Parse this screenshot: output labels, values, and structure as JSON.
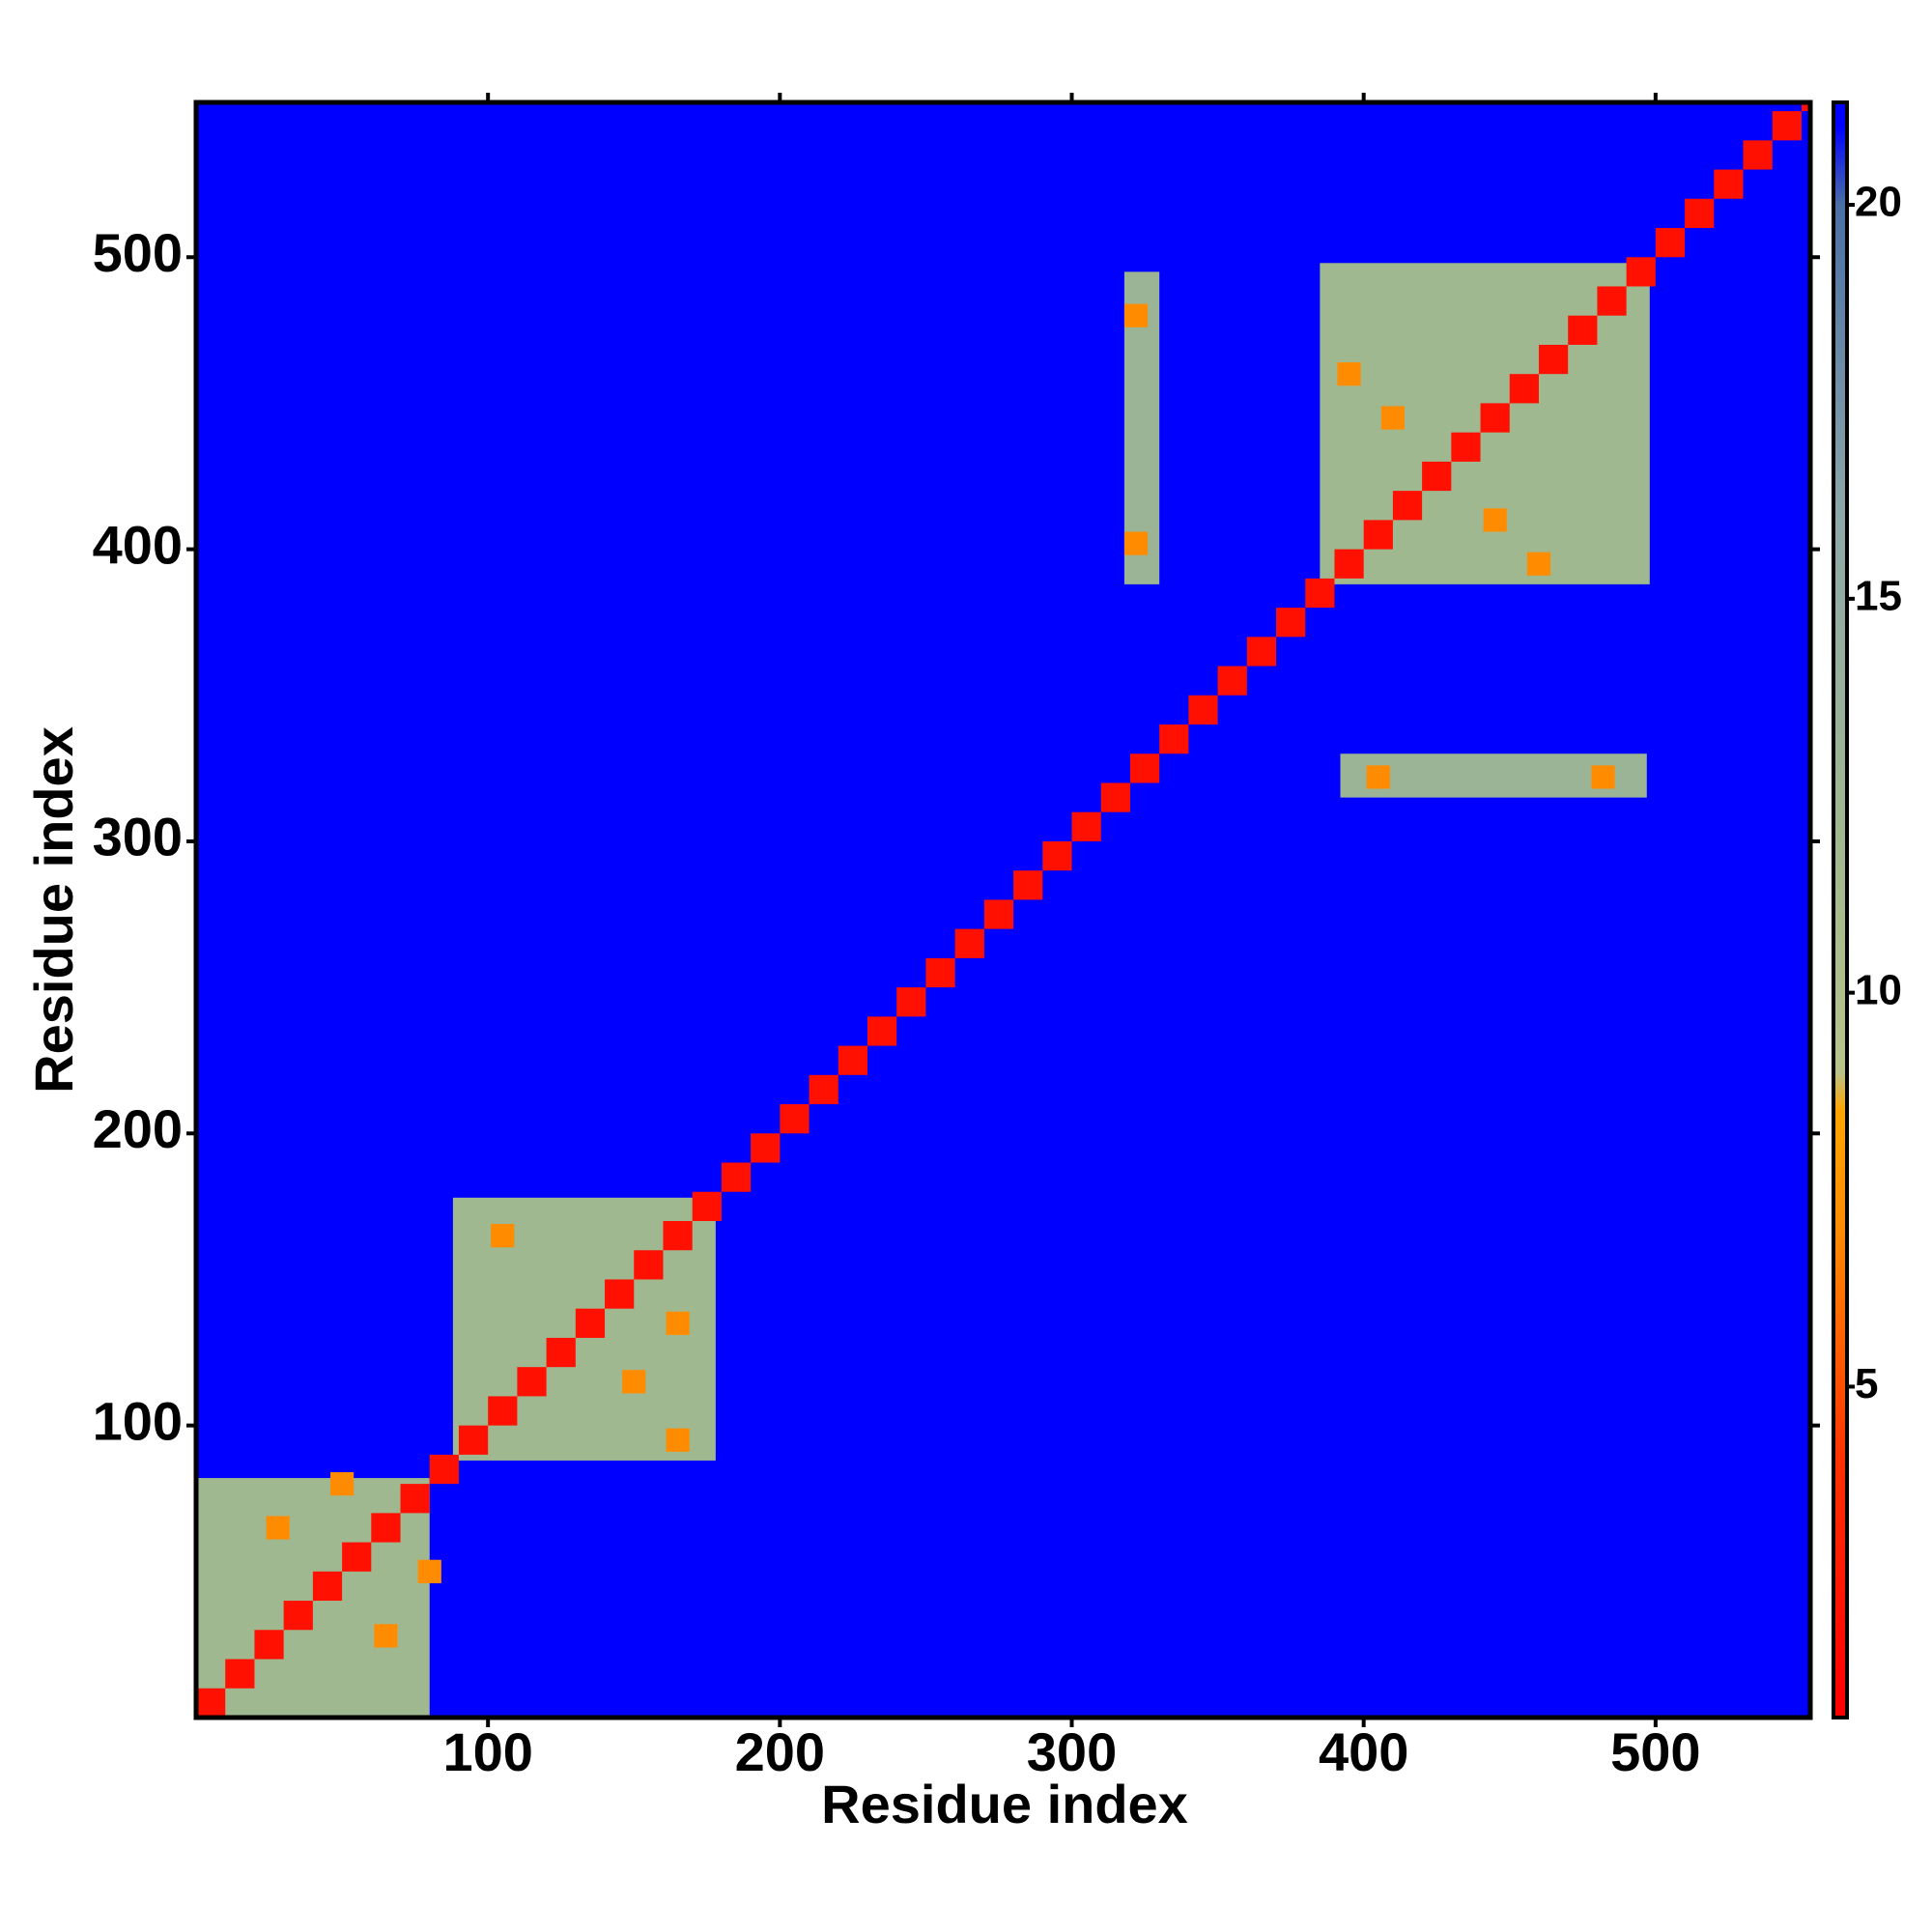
{
  "chart_data": {
    "type": "heatmap",
    "xlabel": "Residue index",
    "ylabel": "Residue index",
    "xlim": [
      0,
      553
    ],
    "ylim": [
      0,
      553
    ],
    "xticks": [
      100,
      200,
      300,
      400,
      500
    ],
    "yticks": [
      100,
      200,
      300,
      400,
      500
    ],
    "clim": [
      0.8,
      21.3
    ],
    "cticks": [
      5,
      10,
      15,
      20
    ],
    "background_value": 21,
    "colormap": [
      {
        "value": 1,
        "color": "#ff0000"
      },
      {
        "value": 4,
        "color": "#ff3000"
      },
      {
        "value": 7,
        "color": "#ff8c00"
      },
      {
        "value": 8.5,
        "color": "#ffa500"
      },
      {
        "value": 9,
        "color": "#b8c48a"
      },
      {
        "value": 12,
        "color": "#a0b890"
      },
      {
        "value": 16,
        "color": "#8fa8a8"
      },
      {
        "value": 20,
        "color": "#4a6fa5"
      },
      {
        "value": 21,
        "color": "#0000ff"
      }
    ],
    "cells": {
      "x0": [
        0,
        88,
        385,
        318,
        392,
        101,
        161,
        161,
        146,
        391,
        456,
        406,
        441,
        318,
        318,
        401,
        478,
        24,
        61,
        46,
        76,
        0,
        10,
        20,
        30,
        40,
        50,
        60,
        70,
        80,
        90,
        100,
        110,
        120,
        130,
        140,
        150,
        160,
        170,
        180,
        190,
        200,
        210,
        220,
        230,
        240,
        250,
        260,
        270,
        280,
        290,
        300,
        310,
        320,
        330,
        340,
        350,
        360,
        370,
        380,
        390,
        400,
        410,
        420,
        430,
        440,
        450,
        460,
        470,
        480,
        490,
        500,
        510,
        520,
        530,
        540,
        550
      ],
      "x1": [
        80,
        178,
        498,
        330,
        497,
        109,
        169,
        169,
        154,
        399,
        464,
        414,
        449,
        326,
        326,
        409,
        486,
        32,
        69,
        54,
        84,
        10,
        20,
        30,
        40,
        50,
        60,
        70,
        80,
        90,
        100,
        110,
        120,
        130,
        140,
        150,
        160,
        170,
        180,
        190,
        200,
        210,
        220,
        230,
        240,
        250,
        260,
        270,
        280,
        290,
        300,
        310,
        320,
        330,
        340,
        350,
        360,
        370,
        380,
        390,
        400,
        410,
        420,
        430,
        440,
        450,
        460,
        470,
        480,
        490,
        500,
        510,
        520,
        530,
        540,
        550,
        553
      ],
      "y0": [
        0,
        88,
        388,
        388,
        315,
        161,
        131,
        91,
        111,
        456,
        391,
        441,
        406,
        476,
        398,
        318,
        318,
        61,
        24,
        76,
        46,
        0,
        10,
        20,
        30,
        40,
        50,
        60,
        70,
        80,
        90,
        100,
        110,
        120,
        130,
        140,
        150,
        160,
        170,
        180,
        190,
        200,
        210,
        220,
        230,
        240,
        250,
        260,
        270,
        280,
        290,
        300,
        310,
        320,
        330,
        340,
        350,
        360,
        370,
        380,
        390,
        400,
        410,
        420,
        430,
        440,
        450,
        460,
        470,
        480,
        490,
        500,
        510,
        520,
        530,
        540,
        550
      ],
      "y1": [
        82,
        178,
        498,
        495,
        330,
        169,
        139,
        99,
        119,
        464,
        399,
        449,
        414,
        484,
        406,
        326,
        326,
        69,
        32,
        84,
        54,
        10,
        20,
        30,
        40,
        50,
        60,
        70,
        80,
        90,
        100,
        110,
        120,
        130,
        140,
        150,
        160,
        170,
        180,
        190,
        200,
        210,
        220,
        230,
        240,
        250,
        260,
        270,
        280,
        290,
        300,
        310,
        320,
        330,
        340,
        350,
        360,
        370,
        380,
        390,
        400,
        410,
        420,
        430,
        440,
        450,
        460,
        470,
        480,
        490,
        500,
        510,
        520,
        530,
        540,
        550,
        553
      ],
      "values": [
        12,
        12,
        12,
        13,
        13,
        7,
        7,
        7,
        7,
        7,
        7,
        7,
        7,
        7,
        7,
        7,
        7,
        7,
        7,
        7,
        7,
        2,
        2,
        2,
        2,
        2,
        2,
        2,
        2,
        2,
        2,
        2,
        2,
        2,
        2,
        2,
        2,
        2,
        2,
        2,
        2,
        2,
        2,
        2,
        2,
        2,
        2,
        2,
        2,
        2,
        2,
        2,
        2,
        2,
        2,
        2,
        2,
        2,
        2,
        2,
        2,
        2,
        2,
        2,
        2,
        2,
        2,
        2,
        2,
        2,
        2,
        2,
        2,
        2,
        2,
        2,
        2
      ]
    }
  }
}
